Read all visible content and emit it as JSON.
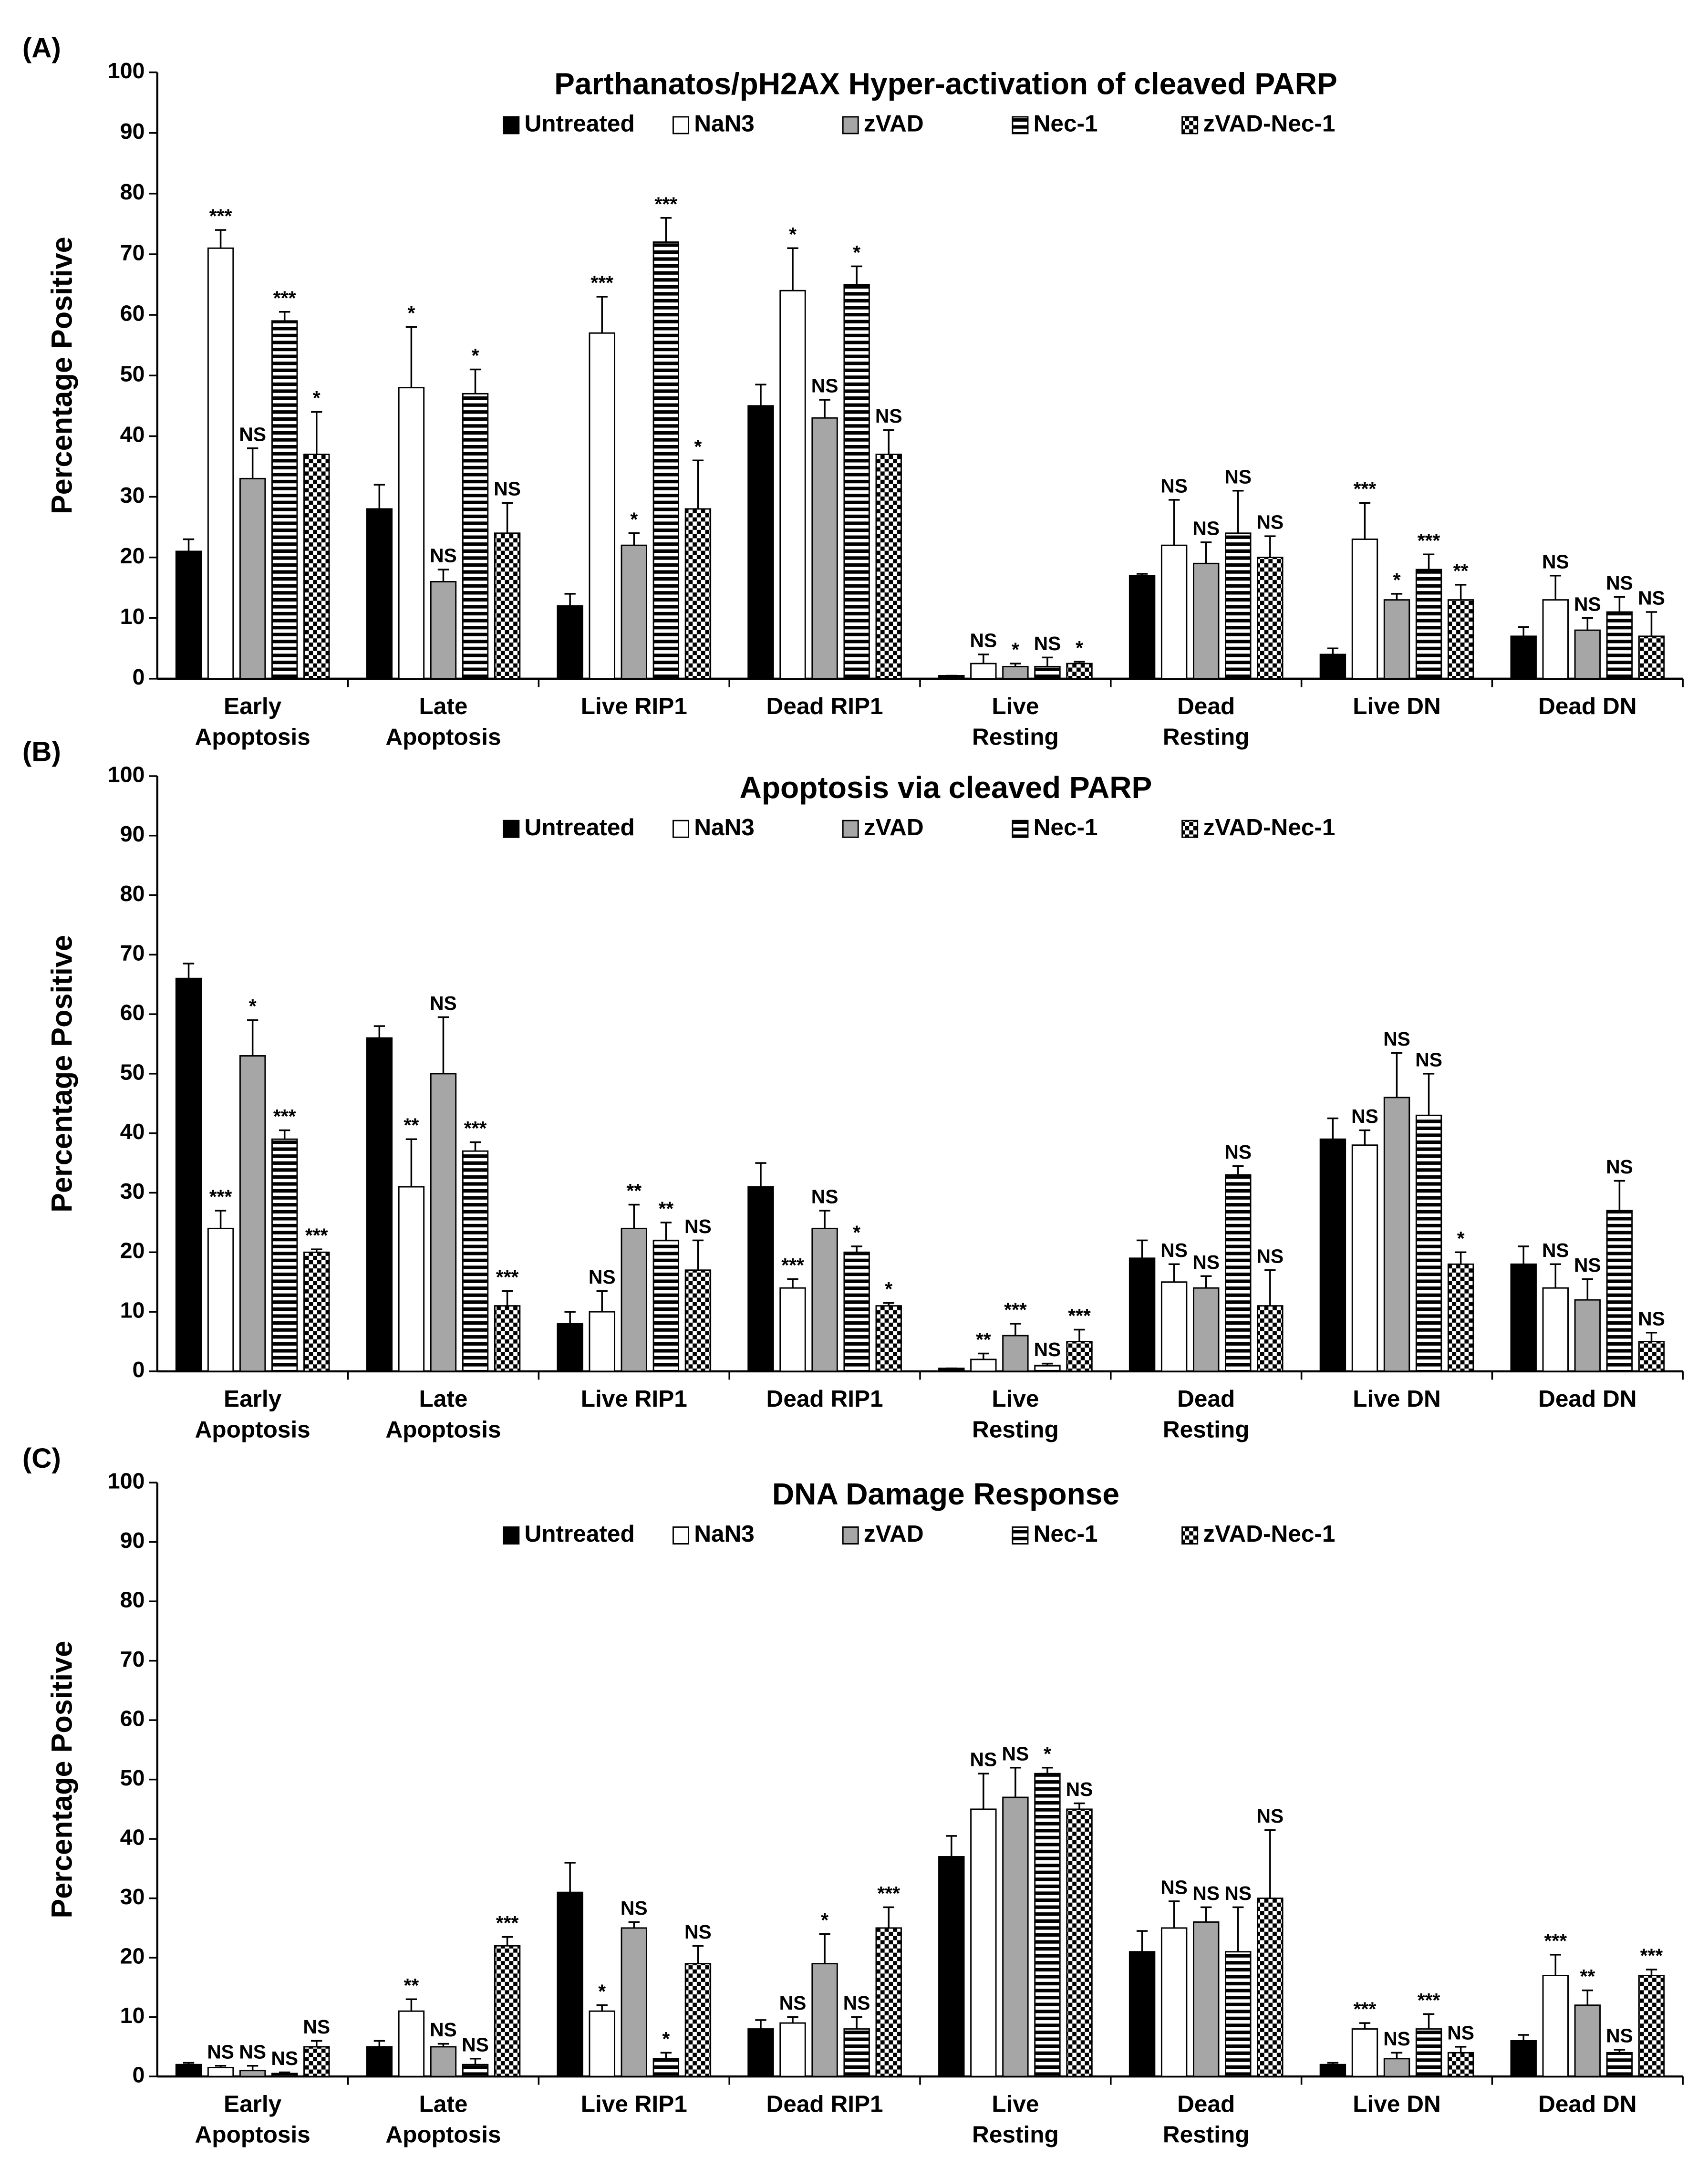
{
  "chart_data": [
    {
      "type": "bar",
      "panel": "(A)",
      "title": "Parthanatos/pH2AX Hyper-activation of cleaved PARP",
      "ylabel": "Percentage Positive",
      "categories": [
        [
          "Early",
          "Apoptosis"
        ],
        [
          "Late",
          "Apoptosis"
        ],
        [
          "Live RIP1"
        ],
        [
          "Dead RIP1"
        ],
        [
          "Live",
          "Resting"
        ],
        [
          "Dead",
          "Resting"
        ],
        [
          "Live DN"
        ],
        [
          "Dead DN"
        ]
      ],
      "ylim": [
        0,
        100
      ],
      "yticks": [
        0,
        10,
        20,
        30,
        40,
        50,
        60,
        70,
        80,
        90,
        100
      ],
      "series": [
        {
          "name": "Untreated",
          "color": "#000000",
          "pattern": "solid",
          "values": [
            21,
            28,
            12,
            45,
            0.5,
            17,
            4,
            7
          ],
          "errors": [
            2,
            4,
            2,
            3.5,
            0,
            0.3,
            1,
            1.5
          ]
        },
        {
          "name": "NaN3",
          "color": "#ffffff",
          "pattern": "solid",
          "values": [
            71,
            48,
            57,
            64,
            2.5,
            22,
            23,
            13
          ],
          "errors": [
            3,
            10,
            6,
            7,
            1.5,
            7.5,
            6,
            4
          ],
          "annotations": [
            "***",
            "*",
            "***",
            "*",
            "NS",
            "NS",
            "***",
            "NS"
          ]
        },
        {
          "name": "zVAD",
          "color": "#a6a6a6",
          "pattern": "solid",
          "values": [
            33,
            16,
            22,
            43,
            2,
            19,
            13,
            8
          ],
          "errors": [
            5,
            2,
            2,
            3,
            0.5,
            3.5,
            1,
            2
          ],
          "annotations": [
            "NS",
            "NS",
            "*",
            "NS",
            "*",
            "NS",
            "*",
            "NS"
          ]
        },
        {
          "name": "Nec-1",
          "color": "#000000",
          "pattern": "stripes",
          "values": [
            59,
            47,
            72,
            65,
            2,
            24,
            18,
            11
          ],
          "errors": [
            1.5,
            4,
            4,
            3,
            1.5,
            7,
            2.5,
            2.5
          ],
          "annotations": [
            "***",
            "*",
            "***",
            "*",
            "NS",
            "NS",
            "***",
            "NS"
          ]
        },
        {
          "name": "zVAD-Nec-1",
          "color": "#000000",
          "pattern": "checker",
          "values": [
            37,
            24,
            28,
            37,
            2.5,
            20,
            13,
            7
          ],
          "errors": [
            7,
            5,
            8,
            4,
            0.3,
            3.5,
            2.5,
            4
          ],
          "annotations": [
            "*",
            "NS",
            "*",
            "NS",
            "*",
            "NS",
            "**",
            "NS"
          ]
        }
      ]
    },
    {
      "type": "bar",
      "panel": "(B)",
      "title": "Apoptosis via cleaved PARP",
      "ylabel": "Percentage Positive",
      "categories": [
        [
          "Early",
          "Apoptosis"
        ],
        [
          "Late",
          "Apoptosis"
        ],
        [
          "Live RIP1"
        ],
        [
          "Dead RIP1"
        ],
        [
          "Live",
          "Resting"
        ],
        [
          "Dead",
          "Resting"
        ],
        [
          "Live DN"
        ],
        [
          "Dead DN"
        ]
      ],
      "ylim": [
        0,
        100
      ],
      "yticks": [
        0,
        10,
        20,
        30,
        40,
        50,
        60,
        70,
        80,
        90,
        100
      ],
      "series": [
        {
          "name": "Untreated",
          "color": "#000000",
          "pattern": "solid",
          "values": [
            66,
            56,
            8,
            31,
            0.5,
            19,
            39,
            18
          ],
          "errors": [
            2.5,
            2,
            2,
            4,
            0,
            3,
            3.5,
            3
          ]
        },
        {
          "name": "NaN3",
          "color": "#ffffff",
          "pattern": "solid",
          "values": [
            24,
            31,
            10,
            14,
            2,
            15,
            38,
            14
          ],
          "errors": [
            3,
            8,
            3.5,
            1.5,
            1,
            3,
            2.5,
            4
          ],
          "annotations": [
            "***",
            "**",
            "NS",
            "***",
            "**",
            "NS",
            "NS",
            "NS"
          ]
        },
        {
          "name": "zVAD",
          "color": "#a6a6a6",
          "pattern": "solid",
          "values": [
            53,
            50,
            24,
            24,
            6,
            14,
            46,
            12
          ],
          "errors": [
            6,
            9.5,
            4,
            3,
            2,
            2,
            7.5,
            3.5
          ],
          "annotations": [
            "*",
            "NS",
            "**",
            "NS",
            "***",
            "NS",
            "NS",
            "NS"
          ]
        },
        {
          "name": "Nec-1",
          "color": "#000000",
          "pattern": "stripes",
          "values": [
            39,
            37,
            22,
            20,
            1,
            33,
            43,
            27
          ],
          "errors": [
            1.5,
            1.5,
            3,
            1,
            0.3,
            1.5,
            7,
            5
          ],
          "annotations": [
            "***",
            "***",
            "**",
            "*",
            "NS",
            "NS",
            "NS",
            "NS"
          ]
        },
        {
          "name": "zVAD-Nec-1",
          "color": "#000000",
          "pattern": "checker",
          "values": [
            20,
            11,
            17,
            11,
            5,
            11,
            18,
            5
          ],
          "errors": [
            0.5,
            2.5,
            5,
            0.5,
            2,
            6,
            2,
            1.5
          ],
          "annotations": [
            "***",
            "***",
            "NS",
            "*",
            "***",
            "NS",
            "*",
            "NS"
          ]
        }
      ]
    },
    {
      "type": "bar",
      "panel": "(C)",
      "title": "DNA Damage Response",
      "ylabel": "Percentage Positive",
      "categories": [
        [
          "Early",
          "Apoptosis"
        ],
        [
          "Late",
          "Apoptosis"
        ],
        [
          "Live RIP1"
        ],
        [
          "Dead RIP1"
        ],
        [
          "Live",
          "Resting"
        ],
        [
          "Dead",
          "Resting"
        ],
        [
          "Live DN"
        ],
        [
          "Dead DN"
        ]
      ],
      "ylim": [
        0,
        100
      ],
      "yticks": [
        0,
        10,
        20,
        30,
        40,
        50,
        60,
        70,
        80,
        90,
        100
      ],
      "series": [
        {
          "name": "Untreated",
          "color": "#000000",
          "pattern": "solid",
          "values": [
            2,
            5,
            31,
            8,
            37,
            21,
            2,
            6
          ],
          "errors": [
            0.3,
            1,
            5,
            1.5,
            3.5,
            3.5,
            0.3,
            1
          ]
        },
        {
          "name": "NaN3",
          "color": "#ffffff",
          "pattern": "solid",
          "values": [
            1.5,
            11,
            11,
            9,
            45,
            25,
            8,
            17
          ],
          "errors": [
            0.3,
            2,
            1,
            1,
            6,
            4.5,
            1,
            3.5
          ],
          "annotations": [
            "NS",
            "**",
            "*",
            "NS",
            "NS",
            "NS",
            "***",
            "***"
          ]
        },
        {
          "name": "zVAD",
          "color": "#a6a6a6",
          "pattern": "solid",
          "values": [
            1,
            5,
            25,
            19,
            47,
            26,
            3,
            12
          ],
          "errors": [
            0.8,
            0.5,
            1,
            5,
            5,
            2.5,
            1,
            2.5
          ],
          "annotations": [
            "NS",
            "NS",
            "NS",
            "*",
            "NS",
            "NS",
            "NS",
            "**"
          ]
        },
        {
          "name": "Nec-1",
          "color": "#000000",
          "pattern": "stripes",
          "values": [
            0.5,
            2,
            3,
            8,
            51,
            21,
            8,
            4
          ],
          "errors": [
            0.2,
            1,
            1,
            2,
            1,
            7.5,
            2.5,
            0.5
          ],
          "annotations": [
            "NS",
            "NS",
            "*",
            "NS",
            "*",
            "NS",
            "***",
            "NS"
          ]
        },
        {
          "name": "zVAD-Nec-1",
          "color": "#000000",
          "pattern": "checker",
          "values": [
            5,
            22,
            19,
            25,
            45,
            30,
            4,
            17
          ],
          "errors": [
            1,
            1.5,
            3,
            3.5,
            1,
            11.5,
            1,
            1
          ],
          "annotations": [
            "NS",
            "***",
            "NS",
            "***",
            "NS",
            "NS",
            "NS",
            "***"
          ]
        }
      ]
    }
  ]
}
